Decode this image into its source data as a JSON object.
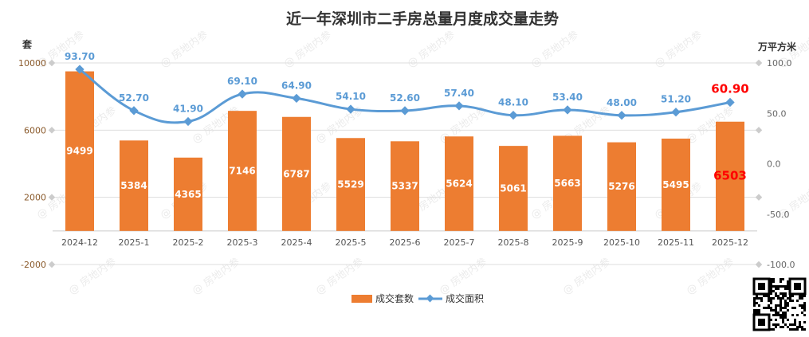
{
  "chart_data": {
    "type": "bar+line",
    "title": "近一年深圳市二手房总量月度成交量走势",
    "ylabel_left": "套",
    "ylabel_right": "万平方米",
    "categories": [
      "2024-12",
      "2025-1",
      "2025-2",
      "2025-3",
      "2025-4",
      "2025-5",
      "2025-6",
      "2025-7",
      "2025-8",
      "2025-9",
      "2025-10",
      "2025-11",
      "2025-12"
    ],
    "series": [
      {
        "name": "成交套数",
        "type": "bar",
        "axis": "left",
        "color": "#ed7d31",
        "values": [
          9499,
          5384,
          4365,
          7146,
          6787,
          5529,
          5337,
          5624,
          5061,
          5663,
          5276,
          5495,
          6503
        ],
        "labels": [
          "9499",
          "5384",
          "4365",
          "7146",
          "6787",
          "5529",
          "5337",
          "5624",
          "5061",
          "5663",
          "5276",
          "5495",
          "6503"
        ]
      },
      {
        "name": "成交面积",
        "type": "line",
        "axis": "right",
        "color": "#5b9bd5",
        "values": [
          93.7,
          52.7,
          41.9,
          69.1,
          64.9,
          54.1,
          52.6,
          57.4,
          48.1,
          53.4,
          48.0,
          51.2,
          60.9
        ],
        "labels": [
          "93.70",
          "52.70",
          "41.90",
          "69.10",
          "64.90",
          "54.10",
          "52.60",
          "57.40",
          "48.10",
          "53.40",
          "48.00",
          "51.20",
          "60.90"
        ]
      }
    ],
    "highlight_color": "#ff0000",
    "ylim_left": [
      -2000,
      10000
    ],
    "yticks_left": [
      "10000",
      "6000",
      "2000",
      "-2000"
    ],
    "ylim_right": [
      -100,
      100
    ],
    "yticks_right": [
      "100.0",
      "50.0",
      "0.0",
      "-50.0",
      "-100.0"
    ],
    "grid": true,
    "legend_position": "bottom"
  },
  "watermark": "@ 房地内参"
}
